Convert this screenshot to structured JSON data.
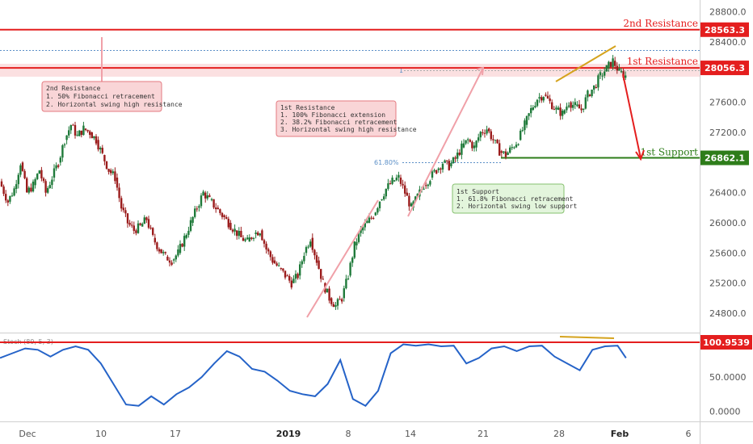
{
  "chart_data": {
    "type": "candlestick",
    "title": "",
    "price_axis": {
      "ticks": [
        24800.0,
        25200.0,
        25600.0,
        26000.0,
        26400.0,
        27200.0,
        27600.0,
        28400.0,
        28800.0
      ],
      "range": [
        24650,
        28850
      ]
    },
    "x_axis": {
      "labels": [
        "Dec",
        "10",
        "17",
        "2019",
        "8",
        "14",
        "21",
        "28",
        "Feb",
        "6"
      ],
      "bold_labels": [
        "2019",
        "Feb"
      ]
    },
    "levels": [
      {
        "name": "2nd Resistance",
        "value": 28563.3,
        "badge": "28563.3",
        "color": "#e41e1e"
      },
      {
        "name": "1st Resistance",
        "value": 28056.3,
        "badge": "28056.3",
        "color": "#e41e1e"
      },
      {
        "name": "1st Support",
        "value": 26862.1,
        "badge": "26862.1",
        "color": "#2e7d1a"
      }
    ],
    "fib_label": "61.80%",
    "fib_marker": "1",
    "annotations": [
      {
        "title": "2nd Resistance",
        "lines": [
          "1. 50% Fibonacci retracement",
          "2. Horizontal swing high resistance"
        ]
      },
      {
        "title": "1st Resistance",
        "lines": [
          "1. 100% Fibonacci extension",
          "2. 38.2% Fibonacci retracement",
          "3. Horizontal swing high resistance"
        ]
      },
      {
        "title": "1st Support",
        "lines": [
          "1. 61.8% Fibonacci retracement",
          "2. Horizontal swing low support"
        ]
      }
    ],
    "price_path": [
      [
        0,
        26550
      ],
      [
        4,
        26280
      ],
      [
        7,
        26450
      ],
      [
        10,
        26800
      ],
      [
        13,
        26400
      ],
      [
        16,
        26500
      ],
      [
        19,
        26700
      ],
      [
        22,
        26400
      ],
      [
        25,
        26600
      ],
      [
        28,
        26800
      ],
      [
        31,
        27100
      ],
      [
        34,
        27300
      ],
      [
        37,
        27150
      ],
      [
        40,
        27250
      ],
      [
        43,
        27200
      ],
      [
        46,
        27100
      ],
      [
        49,
        26900
      ],
      [
        52,
        26700
      ],
      [
        55,
        26600
      ],
      [
        58,
        26200
      ],
      [
        61,
        26000
      ],
      [
        64,
        25900
      ],
      [
        67,
        25950
      ],
      [
        70,
        26050
      ],
      [
        73,
        25800
      ],
      [
        76,
        25650
      ],
      [
        79,
        25550
      ],
      [
        82,
        25500
      ],
      [
        85,
        25600
      ],
      [
        88,
        25800
      ],
      [
        91,
        26000
      ],
      [
        94,
        26200
      ],
      [
        97,
        26400
      ],
      [
        100,
        26300
      ],
      [
        103,
        26200
      ],
      [
        106,
        26100
      ],
      [
        109,
        26000
      ],
      [
        112,
        25900
      ],
      [
        115,
        25800
      ],
      [
        118,
        25750
      ],
      [
        121,
        25850
      ],
      [
        124,
        25900
      ],
      [
        127,
        25650
      ],
      [
        130,
        25500
      ],
      [
        133,
        25400
      ],
      [
        136,
        25300
      ],
      [
        139,
        25200
      ],
      [
        142,
        25300
      ],
      [
        145,
        25600
      ],
      [
        148,
        25800
      ],
      [
        151,
        25500
      ],
      [
        154,
        25200
      ],
      [
        157,
        25000
      ],
      [
        160,
        24900
      ],
      [
        163,
        25000
      ],
      [
        166,
        25300
      ],
      [
        169,
        25700
      ],
      [
        172,
        25900
      ],
      [
        175,
        26000
      ],
      [
        178,
        26100
      ],
      [
        181,
        26300
      ],
      [
        184,
        26450
      ],
      [
        187,
        26550
      ],
      [
        190,
        26600
      ],
      [
        193,
        26400
      ],
      [
        196,
        26200
      ],
      [
        199,
        26350
      ],
      [
        202,
        26500
      ],
      [
        205,
        26600
      ],
      [
        208,
        26700
      ],
      [
        211,
        26800
      ],
      [
        214,
        26750
      ],
      [
        217,
        26850
      ],
      [
        220,
        27000
      ],
      [
        223,
        27100
      ],
      [
        226,
        27000
      ],
      [
        229,
        27200
      ],
      [
        232,
        27250
      ],
      [
        235,
        27100
      ],
      [
        238,
        26950
      ],
      [
        241,
        26900
      ],
      [
        244,
        27000
      ],
      [
        247,
        27100
      ],
      [
        250,
        27300
      ],
      [
        253,
        27500
      ],
      [
        256,
        27650
      ],
      [
        259,
        27700
      ],
      [
        262,
        27600
      ],
      [
        265,
        27500
      ],
      [
        268,
        27450
      ],
      [
        271,
        27600
      ],
      [
        274,
        27550
      ],
      [
        277,
        27500
      ],
      [
        280,
        27700
      ],
      [
        283,
        27800
      ],
      [
        286,
        27950
      ],
      [
        289,
        28050
      ],
      [
        292,
        28150
      ],
      [
        295,
        28000
      ],
      [
        298,
        27950
      ]
    ],
    "stoch": {
      "label": "Stoch (89, 5, 3)",
      "ticks": [
        100.9539,
        50.0,
        0.0
      ],
      "tick_labels": [
        "100.9539",
        "50.0000",
        "0.0000"
      ],
      "level": 100.9539,
      "range": [
        -10,
        108
      ],
      "values": [
        [
          0,
          78
        ],
        [
          6,
          85
        ],
        [
          12,
          92
        ],
        [
          18,
          90
        ],
        [
          24,
          80
        ],
        [
          30,
          90
        ],
        [
          36,
          95
        ],
        [
          42,
          90
        ],
        [
          48,
          70
        ],
        [
          54,
          40
        ],
        [
          60,
          10
        ],
        [
          66,
          8
        ],
        [
          72,
          22
        ],
        [
          78,
          10
        ],
        [
          84,
          25
        ],
        [
          90,
          35
        ],
        [
          96,
          50
        ],
        [
          102,
          70
        ],
        [
          108,
          88
        ],
        [
          114,
          80
        ],
        [
          120,
          62
        ],
        [
          126,
          58
        ],
        [
          132,
          45
        ],
        [
          138,
          30
        ],
        [
          144,
          25
        ],
        [
          150,
          22
        ],
        [
          156,
          40
        ],
        [
          162,
          75
        ],
        [
          168,
          18
        ],
        [
          174,
          8
        ],
        [
          180,
          30
        ],
        [
          186,
          85
        ],
        [
          192,
          98
        ],
        [
          198,
          96
        ],
        [
          204,
          98
        ],
        [
          210,
          95
        ],
        [
          216,
          96
        ],
        [
          222,
          70
        ],
        [
          228,
          78
        ],
        [
          234,
          92
        ],
        [
          240,
          95
        ],
        [
          246,
          88
        ],
        [
          252,
          95
        ],
        [
          258,
          96
        ],
        [
          264,
          80
        ],
        [
          270,
          70
        ],
        [
          276,
          60
        ],
        [
          282,
          90
        ],
        [
          288,
          95
        ],
        [
          294,
          96
        ],
        [
          298,
          78
        ]
      ]
    }
  }
}
